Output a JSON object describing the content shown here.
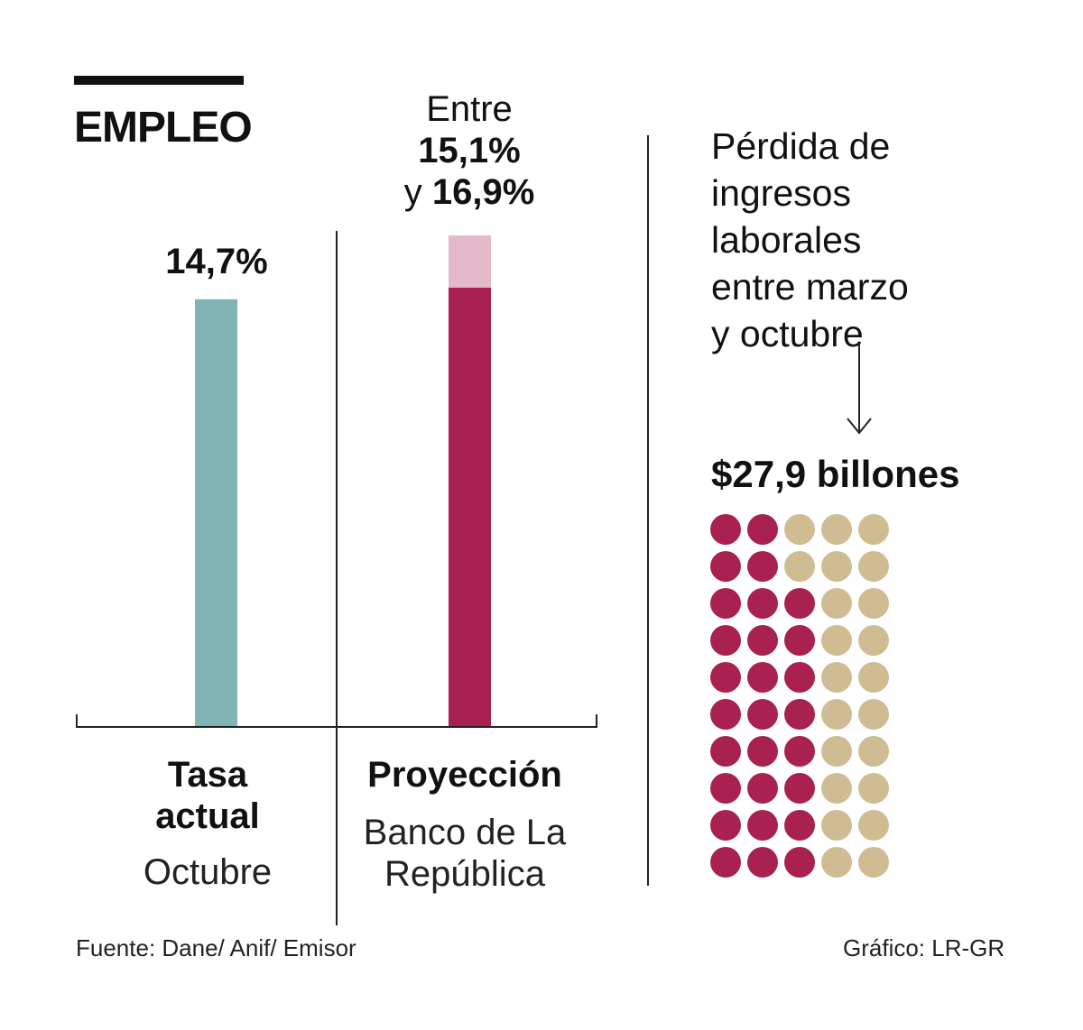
{
  "header": {
    "title": "EMPLEO"
  },
  "chart_data": {
    "type": "bar",
    "title": "EMPLEO",
    "categories": [
      "Tasa actual",
      "Proyección"
    ],
    "series": [
      {
        "name": "Tasa actual (Octubre)",
        "values": [
          14.7,
          null
        ],
        "color": "#80b3b4"
      },
      {
        "name": "Proyección mínima (Banco de La República)",
        "values": [
          null,
          15.1
        ],
        "color": "#a82150"
      },
      {
        "name": "Proyección máxima (Banco de La República)",
        "values": [
          null,
          16.9
        ],
        "color": "#e4b9ca"
      }
    ],
    "ylim": [
      0,
      16.9
    ],
    "xlabel": "",
    "ylabel": "",
    "grid": false
  },
  "bars": {
    "actual": {
      "value_label": "14,7%",
      "label_line1": "Tasa",
      "label_line2": "actual",
      "sub_label": "Octubre"
    },
    "projection": {
      "range_prefix": "Entre",
      "range_low": "15,1%",
      "range_connector": "y",
      "range_high": "16,9%",
      "label": "Proyección",
      "sub_line1": "Banco de La",
      "sub_line2": "República"
    }
  },
  "loss": {
    "lines": [
      "Pérdida de",
      "ingresos",
      "laborales",
      "entre marzo",
      "y octubre"
    ],
    "amount": "$27,9 billones",
    "dot_grid": {
      "rows": 10,
      "cols": 5,
      "filled_per_row": [
        2,
        2,
        3,
        3,
        3,
        3,
        3,
        3,
        3,
        3
      ]
    },
    "colors": {
      "filled": "#a82150",
      "empty": "#cfbc92"
    }
  },
  "footer": {
    "source": "Fuente: Dane/ Anif/ Emisor",
    "credit": "Gráfico: LR-GR"
  }
}
